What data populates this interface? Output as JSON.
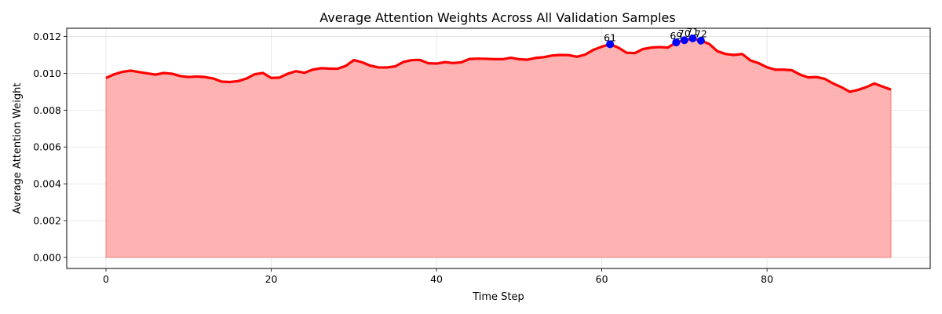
{
  "chart_data": {
    "type": "area",
    "title": "Average Attention Weights Across All Validation Samples",
    "xlabel": "Time Step",
    "ylabel": "Average Attention Weight",
    "xlim": [
      -4.75,
      99.75
    ],
    "ylim": [
      -0.0006,
      0.01245
    ],
    "xticks": [
      0,
      20,
      40,
      60,
      80
    ],
    "xtick_labels": [
      "0",
      "20",
      "40",
      "60",
      "80"
    ],
    "yticks": [
      0.0,
      0.002,
      0.004,
      0.006,
      0.008,
      0.01,
      0.012
    ],
    "ytick_labels": [
      "0.000",
      "0.002",
      "0.004",
      "0.006",
      "0.008",
      "0.010",
      "0.012"
    ],
    "grid": true,
    "colors": {
      "line": "#ff0000",
      "fill": "#ffb2b2",
      "marker": "#0000ff"
    },
    "series": [
      {
        "x": [
          0,
          1,
          2,
          3,
          4,
          5,
          6,
          7,
          8,
          9,
          10,
          11,
          12,
          13,
          14,
          15,
          16,
          17,
          18,
          19,
          20,
          21,
          22,
          23,
          24,
          25,
          26,
          27,
          28,
          29,
          30,
          31,
          32,
          33,
          34,
          35,
          36,
          37,
          38,
          39,
          40,
          41,
          42,
          43,
          44,
          45,
          46,
          47,
          48,
          49,
          50,
          51,
          52,
          53,
          54,
          55,
          56,
          57,
          58,
          59,
          60,
          61,
          62,
          63,
          64,
          65,
          66,
          67,
          68,
          69,
          70,
          71,
          72,
          73,
          74,
          75,
          76,
          77,
          78,
          79,
          80,
          81,
          82,
          83,
          84,
          85,
          86,
          87,
          88,
          89,
          90,
          91,
          92,
          93,
          94,
          95
        ],
        "values": [
          0.00975,
          0.00995,
          0.01008,
          0.01015,
          0.01007,
          0.01,
          0.00993,
          0.01002,
          0.00998,
          0.00985,
          0.0098,
          0.00983,
          0.0098,
          0.00972,
          0.00955,
          0.00953,
          0.00958,
          0.00972,
          0.00995,
          0.01002,
          0.00975,
          0.00977,
          0.00998,
          0.01012,
          0.01003,
          0.0102,
          0.01028,
          0.01026,
          0.01025,
          0.0104,
          0.01072,
          0.0106,
          0.01042,
          0.01032,
          0.01032,
          0.01038,
          0.01062,
          0.01072,
          0.01073,
          0.01055,
          0.01053,
          0.01061,
          0.01056,
          0.0106,
          0.01078,
          0.0108,
          0.01079,
          0.01077,
          0.01077,
          0.01085,
          0.01077,
          0.01074,
          0.01084,
          0.01088,
          0.01097,
          0.011,
          0.01099,
          0.0109,
          0.01102,
          0.01128,
          0.01145,
          0.01158,
          0.0114,
          0.01112,
          0.0111,
          0.01132,
          0.0114,
          0.01143,
          0.0114,
          0.01168,
          0.0118,
          0.0119,
          0.01178,
          0.0116,
          0.0112,
          0.01105,
          0.011,
          0.01105,
          0.0107,
          0.01055,
          0.01033,
          0.0102,
          0.0102,
          0.01017,
          0.00993,
          0.00978,
          0.0098,
          0.0097,
          0.00945,
          0.00925,
          0.009,
          0.0091,
          0.00925,
          0.00945,
          0.00928,
          0.00912
        ]
      }
    ],
    "annotations": [
      {
        "x": 61,
        "y": 0.01158,
        "label": "61"
      },
      {
        "x": 69,
        "y": 0.01168,
        "label": "69"
      },
      {
        "x": 70,
        "y": 0.0118,
        "label": "70"
      },
      {
        "x": 71,
        "y": 0.0119,
        "label": "71"
      },
      {
        "x": 72,
        "y": 0.01178,
        "label": "72"
      }
    ]
  }
}
